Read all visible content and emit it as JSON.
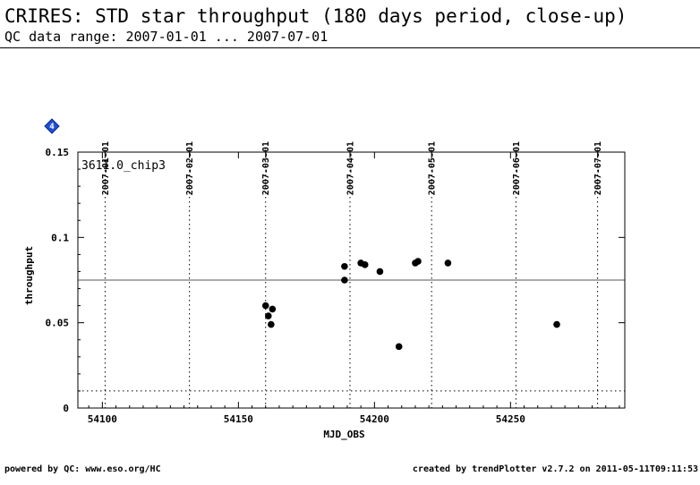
{
  "title": "CRIRES: STD star throughput (180 days period, close-up)",
  "subtitle": "QC data range: 2007-01-01 ... 2007-07-01",
  "footer_left": "powered by QC: www.eso.org/HC",
  "footer_right": "created by trendPlotter v2.7.2 on 2011-05-11T09:11:53",
  "marker_badge": "4",
  "colors": {
    "badge": "#1f4fd8",
    "points": "#000000",
    "axes": "#000000"
  },
  "chart_data": {
    "type": "scatter",
    "series_label": "3611.0_chip3",
    "xlabel": "MJD_OBS",
    "ylabel": "throughput",
    "xlim": [
      54091,
      54292
    ],
    "ylim": [
      0,
      0.15
    ],
    "x_ticks": [
      54100,
      54150,
      54200,
      54250
    ],
    "y_ticks": [
      0,
      0.05,
      0.1,
      0.15
    ],
    "y_tick_labels": [
      "0",
      "0.05",
      "0.1",
      "0.15"
    ],
    "date_ticks": [
      {
        "label": "2007-01-01",
        "mjd": 54101
      },
      {
        "label": "2007-02-01",
        "mjd": 54132
      },
      {
        "label": "2007-03-01",
        "mjd": 54160
      },
      {
        "label": "2007-04-01",
        "mjd": 54191
      },
      {
        "label": "2007-05-01",
        "mjd": 54221
      },
      {
        "label": "2007-06-01",
        "mjd": 54252
      },
      {
        "label": "2007-07-01",
        "mjd": 54282
      }
    ],
    "reference_line": 0.075,
    "lower_threshold": 0.01,
    "points": [
      {
        "x": 54160.0,
        "y": 0.06
      },
      {
        "x": 54161.0,
        "y": 0.054
      },
      {
        "x": 54162.0,
        "y": 0.049
      },
      {
        "x": 54162.5,
        "y": 0.058
      },
      {
        "x": 54189.0,
        "y": 0.083
      },
      {
        "x": 54189.0,
        "y": 0.075
      },
      {
        "x": 54195.0,
        "y": 0.085
      },
      {
        "x": 54196.5,
        "y": 0.084
      },
      {
        "x": 54202.0,
        "y": 0.08
      },
      {
        "x": 54209.0,
        "y": 0.036
      },
      {
        "x": 54215.0,
        "y": 0.085
      },
      {
        "x": 54216.0,
        "y": 0.086
      },
      {
        "x": 54227.0,
        "y": 0.085
      },
      {
        "x": 54267.0,
        "y": 0.049
      }
    ]
  }
}
